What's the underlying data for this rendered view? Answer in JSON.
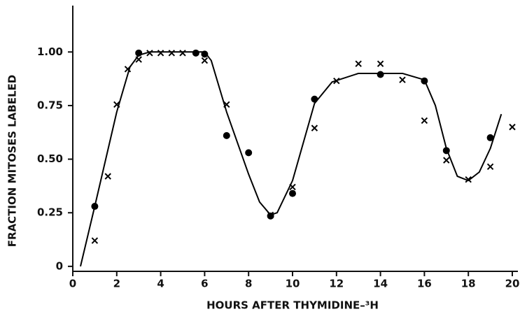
{
  "chart_data": {
    "type": "scatter",
    "xlabel": "HOURS AFTER THYMIDINE–³H",
    "ylabel": "FRACTION MITOSES LABELED",
    "xlim": [
      0,
      20
    ],
    "ylim": [
      -0.02,
      1.2
    ],
    "xticks": [
      0,
      2,
      4,
      6,
      8,
      10,
      12,
      14,
      16,
      18,
      20
    ],
    "yticks": [
      0,
      0.25,
      {
        "value": 0.5,
        "label": "0.50"
      },
      {
        "value": 0.75,
        "label": "0.75"
      },
      {
        "value": 1,
        "label": "1.00"
      }
    ],
    "grid": false,
    "series": [
      {
        "marker": "o",
        "color": "#000000",
        "x": [
          1,
          3,
          5.6,
          6,
          7,
          8,
          9,
          10,
          11,
          14,
          16,
          17,
          19
        ],
        "values": [
          0.28,
          0.995,
          0.995,
          0.99,
          0.61,
          0.53,
          0.235,
          0.34,
          0.78,
          0.895,
          0.865,
          0.54,
          0.6
        ]
      },
      {
        "marker": "x",
        "color": "#000000",
        "x": [
          1,
          1.6,
          2,
          2.5,
          3,
          3.5,
          4,
          4.5,
          5,
          6,
          7,
          9,
          10,
          11,
          12,
          13,
          14,
          15,
          16,
          17,
          18,
          19,
          20
        ],
        "values": [
          0.12,
          0.42,
          0.755,
          0.92,
          0.965,
          0.995,
          0.995,
          0.995,
          0.995,
          0.96,
          0.755,
          0.24,
          0.37,
          0.645,
          0.865,
          0.945,
          0.945,
          0.87,
          0.68,
          0.495,
          0.405,
          0.465,
          0.65
        ]
      },
      {
        "marker": "line",
        "color": "#000000",
        "x": [
          0.35,
          1,
          2,
          2.6,
          3,
          3.5,
          6,
          6.3,
          7,
          8,
          8.5,
          9,
          9.3,
          10,
          11,
          11.8,
          13,
          15,
          16,
          16.5,
          17,
          17.5,
          18,
          18.5,
          19,
          19.5
        ],
        "values": [
          0,
          0.28,
          0.72,
          0.93,
          0.985,
          1.0,
          1.0,
          0.96,
          0.72,
          0.43,
          0.3,
          0.24,
          0.25,
          0.4,
          0.76,
          0.86,
          0.9,
          0.9,
          0.87,
          0.75,
          0.55,
          0.42,
          0.4,
          0.44,
          0.55,
          0.71
        ]
      }
    ]
  }
}
